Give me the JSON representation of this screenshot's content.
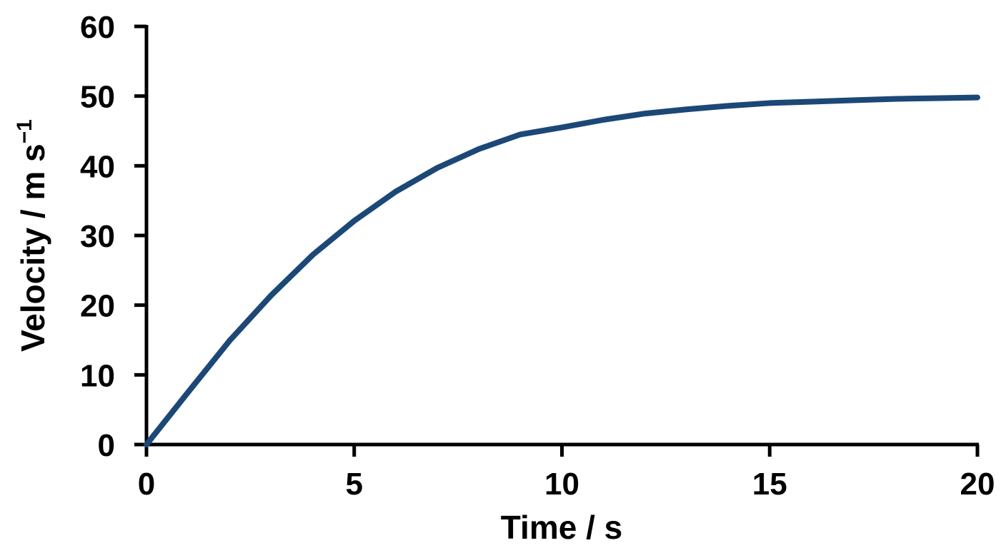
{
  "chart_data": {
    "type": "line",
    "xlabel": "Time / s",
    "ylabel": "Velocity / m s",
    "ylabel_superscript": "−1",
    "x": [
      0,
      1,
      2,
      3,
      4,
      5,
      6,
      7,
      8,
      9,
      10,
      11,
      12,
      13,
      14,
      15,
      16,
      17,
      18,
      19,
      20
    ],
    "series": [
      {
        "color": "#1b4877",
        "values": [
          0,
          7.5,
          14.9,
          21.4,
          27.2,
          32.1,
          36.3,
          39.7,
          42.4,
          44.5,
          45.5,
          46.6,
          47.5,
          48.1,
          48.6,
          49.0,
          49.2,
          49.4,
          49.6,
          49.7,
          49.8
        ]
      }
    ],
    "xlim": [
      0,
      20
    ],
    "xticks": [
      0,
      5,
      10,
      15,
      20
    ],
    "ylim": [
      0,
      60
    ],
    "yticks": [
      0,
      10,
      20,
      30,
      40,
      50,
      60
    ],
    "grid": false
  }
}
